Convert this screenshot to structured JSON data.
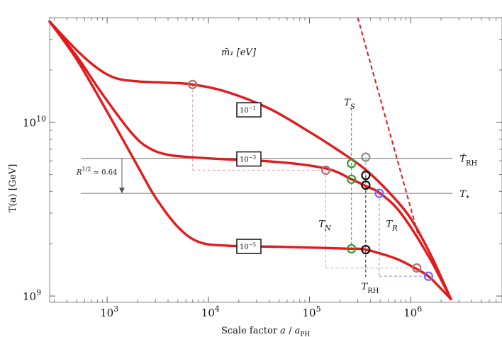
{
  "chart_data": {
    "type": "line",
    "x_scale": "log",
    "y_scale": "log",
    "xlim": [
      270,
      8000000
    ],
    "ylim": [
      920000000,
      40000000000
    ],
    "xlabel": "Scale factor  a / a_PH",
    "ylabel": "T(a)  [GeV]",
    "x_ticks": [
      {
        "value": 1000,
        "base": "10",
        "exp": "3"
      },
      {
        "value": 10000,
        "base": "10",
        "exp": "4"
      },
      {
        "value": 100000,
        "base": "10",
        "exp": "5"
      },
      {
        "value": 1000000,
        "base": "10",
        "exp": "6"
      }
    ],
    "y_ticks": [
      {
        "value": 1000000000,
        "base": "10",
        "exp": "9"
      },
      {
        "value": 10000000000,
        "base": "10",
        "exp": "10"
      }
    ],
    "legend_title": "m̃₁ [eV]",
    "series": [
      {
        "name": "10^-1",
        "label_base": "10",
        "label_exp": "−1",
        "color": "#e31a1c",
        "x": [
          270,
          500,
          800,
          1200,
          2000,
          4000,
          7000,
          15000,
          40000,
          100000,
          200000,
          350000,
          600000,
          1000000,
          1600000,
          2500000
        ],
        "y": [
          38000000000,
          26000000000,
          20500000000,
          18000000000,
          17200000000,
          16900000000,
          16500000000,
          15000000000,
          12000000000,
          8800000000,
          6800000000,
          5400000000,
          4000000000,
          2800000000,
          1700000000,
          960000000
        ]
      },
      {
        "name": "10^-3",
        "label_base": "10",
        "label_exp": "−3",
        "color": "#e31a1c",
        "x": [
          270,
          500,
          800,
          1200,
          1800,
          2500,
          4000,
          10000,
          50000,
          150000,
          260000,
          360000,
          500000,
          800000,
          1500000,
          2500000
        ],
        "y": [
          38000000000,
          24000000000,
          16000000000,
          11500000000,
          8500000000,
          7200000000,
          6500000000,
          6200000000,
          5900000000,
          5400000000,
          4700000000,
          4300000000,
          3900000000,
          3000000000,
          1700000000,
          960000000
        ]
      },
      {
        "name": "10^-5",
        "label_base": "10",
        "label_exp": "−5",
        "color": "#e31a1c",
        "x": [
          270,
          500,
          1000,
          2000,
          3000,
          5000,
          8000,
          15000,
          50000,
          150000,
          260000,
          360000,
          700000,
          1100000,
          1500000,
          2000000,
          2500000
        ],
        "y": [
          38000000000,
          23000000000,
          11500000000,
          5600000000,
          3700000000,
          2500000000,
          2050000000,
          1950000000,
          1920000000,
          1890000000,
          1870000000,
          1850000000,
          1650000000,
          1450000000,
          1300000000,
          1100000000,
          960000000
        ]
      }
    ],
    "reference_lines": [
      {
        "label_main": "T̃",
        "label_sub": "RH",
        "y": 6200000000,
        "x_from": 550,
        "x_to": 2600000
      },
      {
        "label_main": "T",
        "label_sub": "*",
        "y": 3900000000,
        "x_from": 550,
        "x_to": 2600000
      }
    ],
    "dashed_asymptote": {
      "x": [
        300000,
        1200000
      ],
      "y": [
        40000000000,
        2200000000
      ],
      "color": "#e31a1c"
    },
    "arrow": {
      "x": 1400,
      "y_from": 6200000000,
      "y_to": 3900000000,
      "label": "R^{1/2} ≃ 0.64",
      "label_base": "R",
      "label_exp": "1/2",
      "label_rest": " ≃ 0.64"
    },
    "markers": [
      {
        "kind": "T_N",
        "series": "10^-1",
        "x": 7000,
        "y": 16500000000,
        "color": "#a87474"
      },
      {
        "kind": "T_N",
        "series": "10^-3",
        "x": 145000,
        "y": 5300000000,
        "color": "#a87474"
      },
      {
        "kind": "T_N",
        "series": "10^-5",
        "x": 1150000,
        "y": 1450000000,
        "color": "#a87474"
      },
      {
        "kind": "T_N_asym",
        "series": "10^-1",
        "x": 360000,
        "y": 6300000000,
        "color": "#8a8a8a"
      },
      {
        "kind": "T_S",
        "series": "10^-3",
        "x": 260000,
        "y": 5800000000,
        "color": "#2ca02c"
      },
      {
        "kind": "T_S",
        "series": "10^-3",
        "x": 260000,
        "y": 4700000000,
        "color": "#2ca02c"
      },
      {
        "kind": "T_S",
        "series": "10^-5",
        "x": 260000,
        "y": 1870000000,
        "color": "#2ca02c"
      },
      {
        "kind": "T_RH",
        "series": "10^-1",
        "x": 360000,
        "y": 4950000000,
        "color": "#111111"
      },
      {
        "kind": "T_RH",
        "series": "10^-3",
        "x": 360000,
        "y": 4350000000,
        "color": "#111111"
      },
      {
        "kind": "T_RH",
        "series": "10^-5",
        "x": 360000,
        "y": 1850000000,
        "color": "#111111"
      },
      {
        "kind": "T_R",
        "series": "10^-3",
        "x": 490000,
        "y": 3900000000,
        "color": "#6a6aff"
      },
      {
        "kind": "T_R",
        "series": "10^-5",
        "x": 1500000,
        "y": 1300000000,
        "color": "#6a6aff"
      }
    ],
    "annotations": [
      {
        "main": "T",
        "sub": "S",
        "x": 250000,
        "y": 13000000000
      },
      {
        "main": "T",
        "sub": "N",
        "x": 140000,
        "y": 2600000000
      },
      {
        "main": "T",
        "sub": "R",
        "x": 650000,
        "y": 2600000000
      },
      {
        "main": "T",
        "sub": "RH",
        "x": 370000,
        "y": 1130000000
      }
    ],
    "grid": false,
    "legend_placement": "inline-labels"
  }
}
